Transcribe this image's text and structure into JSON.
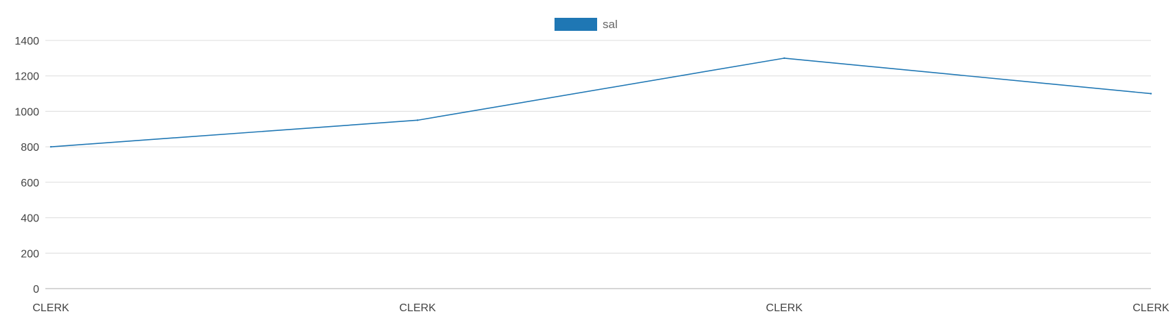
{
  "chart_data": {
    "type": "line",
    "categories": [
      "CLERK",
      "CLERK",
      "CLERK",
      "CLERK"
    ],
    "series": [
      {
        "name": "sal",
        "values": [
          800,
          950,
          1300,
          1100
        ],
        "color": "#1f77b4"
      }
    ],
    "yticks": [
      0,
      200,
      400,
      600,
      800,
      1000,
      1200,
      1400
    ],
    "ylim": [
      0,
      1400
    ],
    "grid": true,
    "legend": "top-center"
  }
}
